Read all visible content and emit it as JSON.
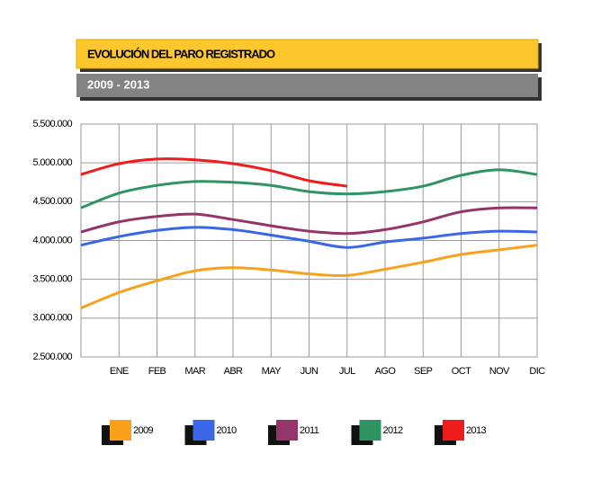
{
  "chart_data": {
    "type": "line",
    "title": "EVOLUCIÓN DEL PARO REGISTRADO",
    "subtitle": "2009 - 2013",
    "categories": [
      null,
      "ENE",
      "FEB",
      "MAR",
      "ABR",
      "MAY",
      "JUN",
      "JUL",
      "AGO",
      "SEP",
      "OCT",
      "NOV",
      "DIC"
    ],
    "series": [
      {
        "name": "2009",
        "color": "#f9a11b",
        "values": [
          3130000,
          3330000,
          3480000,
          3610000,
          3650000,
          3620000,
          3570000,
          3550000,
          3630000,
          3720000,
          3820000,
          3880000,
          3940000
        ]
      },
      {
        "name": "2010",
        "color": "#3a66e8",
        "values": [
          3940000,
          4050000,
          4130000,
          4170000,
          4140000,
          4070000,
          3990000,
          3910000,
          3980000,
          4030000,
          4090000,
          4120000,
          4110000
        ]
      },
      {
        "name": "2011",
        "color": "#943468",
        "values": [
          4110000,
          4240000,
          4310000,
          4340000,
          4270000,
          4190000,
          4120000,
          4090000,
          4140000,
          4240000,
          4370000,
          4420000,
          4420000
        ]
      },
      {
        "name": "2012",
        "color": "#2e9464",
        "values": [
          4420000,
          4610000,
          4710000,
          4760000,
          4750000,
          4710000,
          4630000,
          4600000,
          4630000,
          4700000,
          4840000,
          4910000,
          4850000
        ]
      },
      {
        "name": "2013",
        "color": "#ee1c1c",
        "values": [
          4850000,
          4990000,
          5050000,
          5040000,
          4990000,
          4900000,
          4770000,
          4700000,
          null,
          null,
          null,
          null,
          null
        ]
      }
    ],
    "ylim": [
      2500000,
      5500000
    ],
    "yticks": [
      {
        "value": 2500000,
        "label": "2.500.000"
      },
      {
        "value": 3000000,
        "label": "3.000.000"
      },
      {
        "value": 3500000,
        "label": "3.500.000"
      },
      {
        "value": 4000000,
        "label": "4.000.000"
      },
      {
        "value": 4500000,
        "label": "4.500.000"
      },
      {
        "value": 5000000,
        "label": "5.000.000"
      },
      {
        "value": 5500000,
        "label": "5.500.000"
      }
    ],
    "grid": true
  }
}
